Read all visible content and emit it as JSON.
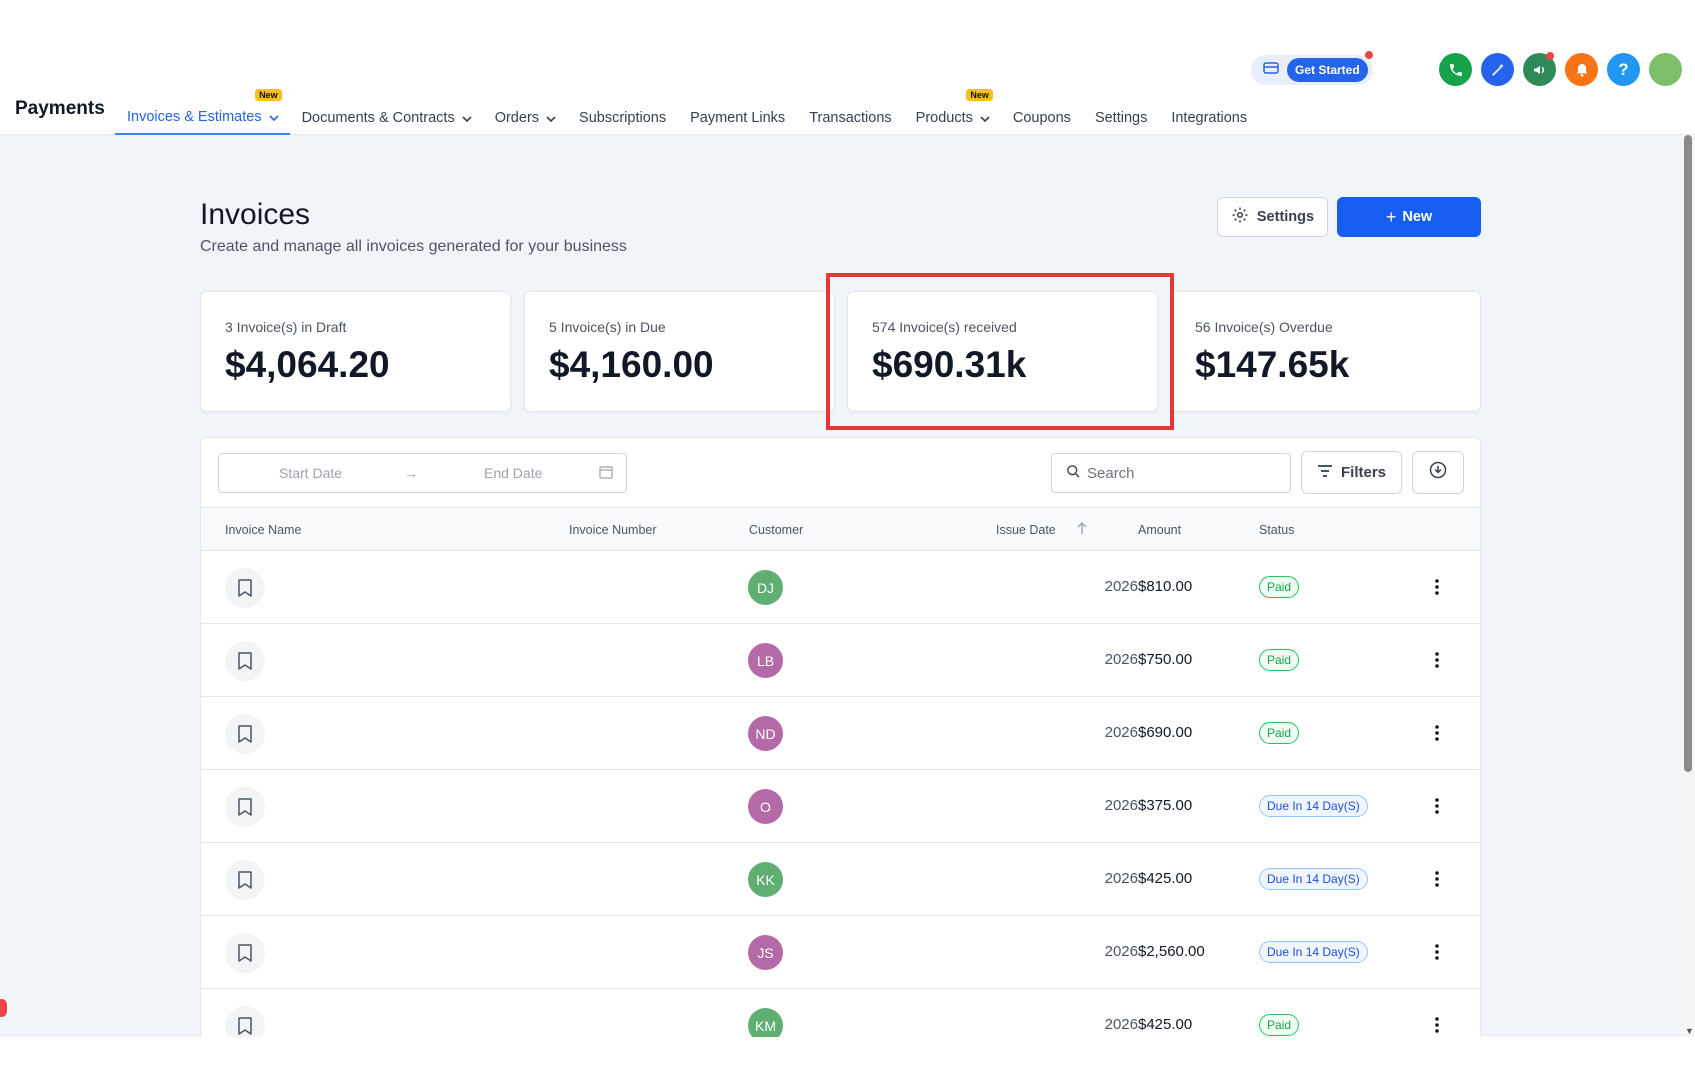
{
  "header": {
    "app_title": "Payments",
    "nav": [
      {
        "label": "Invoices & Estimates",
        "active": true,
        "dropdown": true,
        "badge": "New"
      },
      {
        "label": "Documents & Contracts",
        "active": false,
        "dropdown": true,
        "badge": ""
      },
      {
        "label": "Orders",
        "active": false,
        "dropdown": true,
        "badge": ""
      },
      {
        "label": "Subscriptions",
        "active": false,
        "dropdown": false,
        "badge": ""
      },
      {
        "label": "Payment Links",
        "active": false,
        "dropdown": false,
        "badge": ""
      },
      {
        "label": "Transactions",
        "active": false,
        "dropdown": false,
        "badge": ""
      },
      {
        "label": "Products",
        "active": false,
        "dropdown": true,
        "badge": "New"
      },
      {
        "label": "Coupons",
        "active": false,
        "dropdown": false,
        "badge": ""
      },
      {
        "label": "Settings",
        "active": false,
        "dropdown": false,
        "badge": ""
      },
      {
        "label": "Integrations",
        "active": false,
        "dropdown": false,
        "badge": ""
      }
    ],
    "get_started": "Get Started",
    "icons": [
      {
        "name": "phone-icon",
        "color": "#16a34a"
      },
      {
        "name": "magic-icon",
        "color": "#2563eb"
      },
      {
        "name": "megaphone-icon",
        "color": "#16a34a"
      },
      {
        "name": "bell-icon",
        "color": "#f97316"
      },
      {
        "name": "help-icon",
        "color": "#2196f3"
      },
      {
        "name": "avatar-icon",
        "color": "#7cbf6a"
      }
    ]
  },
  "page": {
    "title": "Invoices",
    "subtitle": "Create and manage all invoices generated for your business",
    "settings_label": "Settings",
    "new_label": "New"
  },
  "stats": [
    {
      "label": "3 Invoice(s) in Draft",
      "value": "$4,064.20"
    },
    {
      "label": "5 Invoice(s) in Due",
      "value": "$4,160.00"
    },
    {
      "label": "574 Invoice(s) received",
      "value": "$690.31k"
    },
    {
      "label": "56 Invoice(s) Overdue",
      "value": "$147.65k"
    }
  ],
  "toolbar": {
    "start_date_placeholder": "Start Date",
    "end_date_placeholder": "End Date",
    "search_placeholder": "Search",
    "filters_label": "Filters"
  },
  "table": {
    "columns": [
      "Invoice Name",
      "Invoice Number",
      "Customer",
      "Issue Date",
      "Amount",
      "Status"
    ],
    "rows": [
      {
        "initials": "DJ",
        "avatar_color": "#5fae72",
        "issue_date": "2026",
        "amount": "$810.00",
        "status": "Paid",
        "status_type": "paid"
      },
      {
        "initials": "LB",
        "avatar_color": "#b56aa8",
        "issue_date": "2026",
        "amount": "$750.00",
        "status": "Paid",
        "status_type": "paid"
      },
      {
        "initials": "ND",
        "avatar_color": "#b56aa8",
        "issue_date": "2026",
        "amount": "$690.00",
        "status": "Paid",
        "status_type": "paid"
      },
      {
        "initials": "O",
        "avatar_color": "#b56aa8",
        "issue_date": "2026",
        "amount": "$375.00",
        "status": "Due In 14 Day(S)",
        "status_type": "due"
      },
      {
        "initials": "KK",
        "avatar_color": "#5fae72",
        "issue_date": "2026",
        "amount": "$425.00",
        "status": "Due In 14 Day(S)",
        "status_type": "due"
      },
      {
        "initials": "JS",
        "avatar_color": "#b56aa8",
        "issue_date": "2026",
        "amount": "$2,560.00",
        "status": "Due In 14 Day(S)",
        "status_type": "due"
      },
      {
        "initials": "KM",
        "avatar_color": "#5fae72",
        "issue_date": "2026",
        "amount": "$425.00",
        "status": "Paid",
        "status_type": "paid"
      }
    ]
  }
}
